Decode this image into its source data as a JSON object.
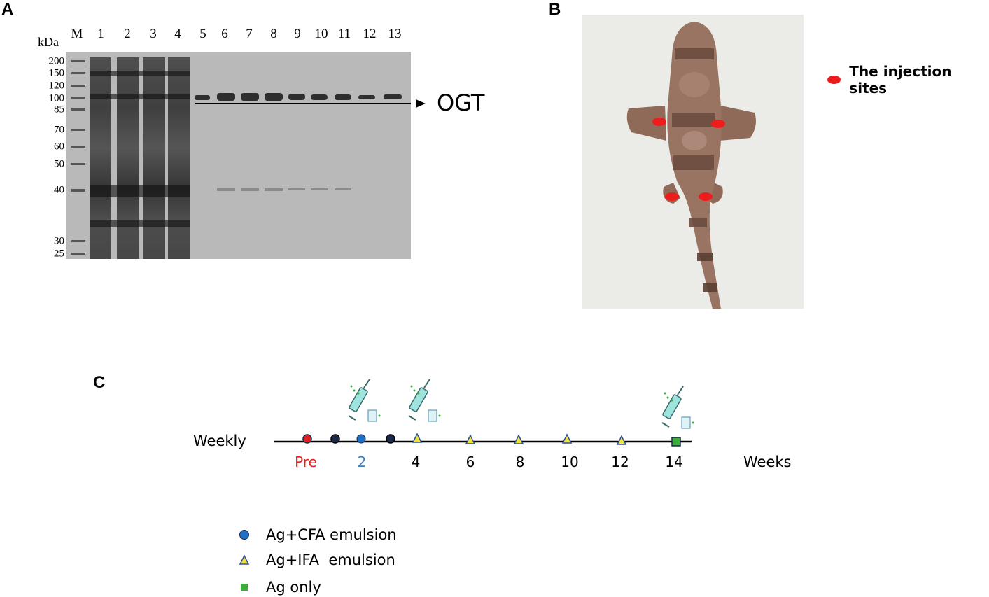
{
  "panels": {
    "a": "A",
    "b": "B",
    "c": "C"
  },
  "gel": {
    "unit": "kDa",
    "lanes": [
      "M",
      "1",
      "2",
      "3",
      "4",
      "5",
      "6",
      "7",
      "8",
      "9",
      "10",
      "11",
      "12",
      "13"
    ],
    "markers": [
      "200",
      "150",
      "120",
      "100",
      "85",
      "70",
      "60",
      "50",
      "40",
      "30",
      "25"
    ],
    "band_label": "OGT"
  },
  "shark": {
    "legend": "The injection sites",
    "site_color": "#ee1c1c"
  },
  "timeline": {
    "left_label": "Weekly",
    "right_label": "Weeks",
    "ticks": [
      "Pre",
      "2",
      "4",
      "6",
      "8",
      "10",
      "12",
      "14"
    ],
    "tick_colors": [
      "#e02020",
      "#3a7ebf",
      "#000000",
      "#000000",
      "#000000",
      "#000000",
      "#000000",
      "#000000"
    ]
  },
  "legend": {
    "cfa": "Ag+CFA emulsion",
    "ifa": "Ag+IFA  emulsion",
    "ag": "Ag only"
  },
  "colors": {
    "cfa": "#1f6fc4",
    "ifa": "#f4e23a",
    "ag": "#3aad3a",
    "pre": "#e02020"
  }
}
